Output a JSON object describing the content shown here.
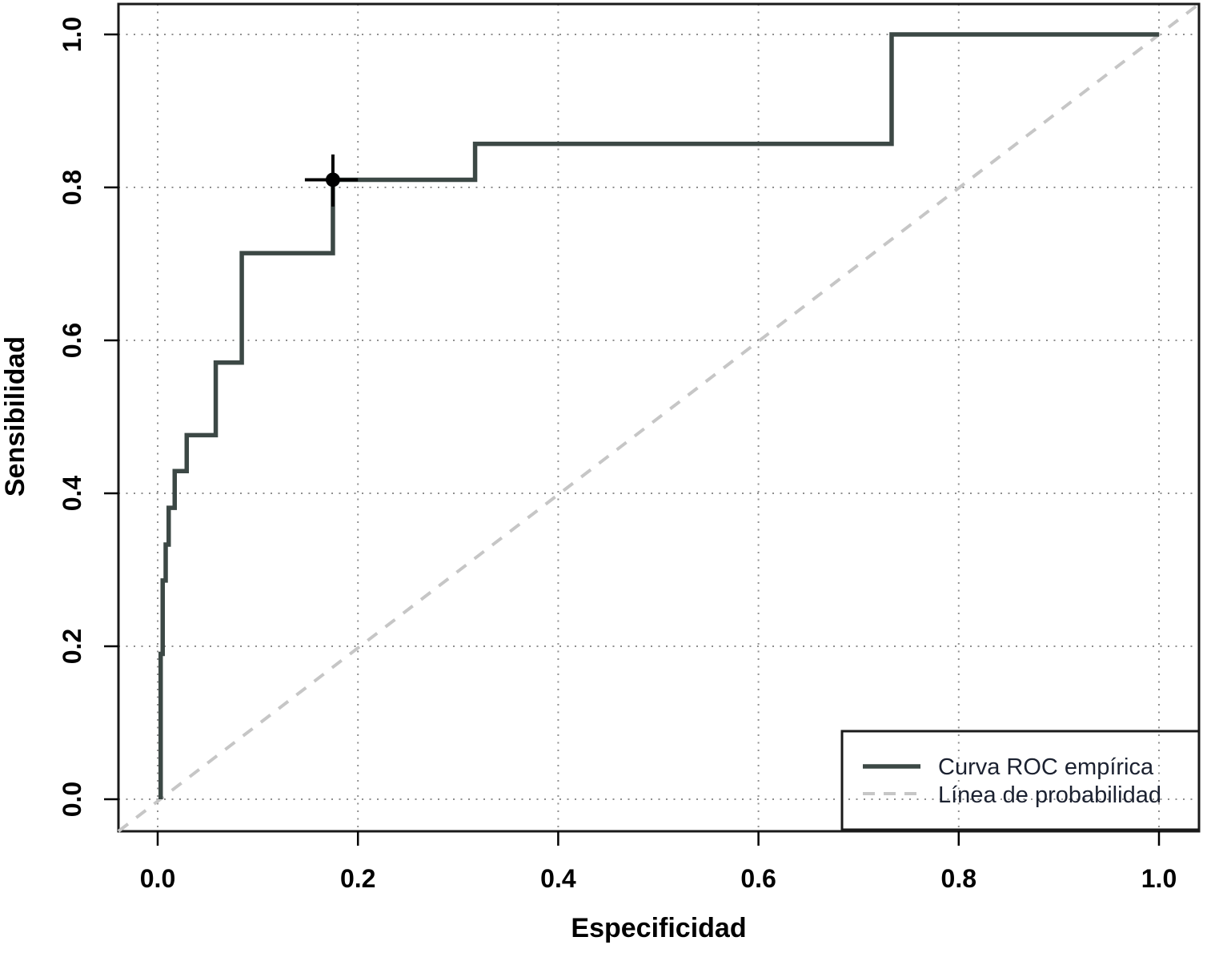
{
  "figure": {
    "background": "#ffffff",
    "box_color": "#1a1a1a",
    "grid_color": "#8f8f8f",
    "tick_color": "#000000",
    "marker_color": "#000000",
    "legend_text_color": "#1b2130"
  },
  "chart_data": {
    "type": "line",
    "subtype": "roc-step-curve",
    "title": "",
    "xlabel": "Especificidad",
    "ylabel": "Sensibilidad",
    "xlim": [
      0.0,
      1.0
    ],
    "ylim": [
      0.0,
      1.0
    ],
    "x_ticks": [
      0.0,
      0.2,
      0.4,
      0.6,
      0.8,
      1.0
    ],
    "y_ticks": [
      0.0,
      0.2,
      0.4,
      0.6,
      0.8,
      1.0
    ],
    "grid": "dotted",
    "series": [
      {
        "name": "Curva ROC empírica",
        "style": "solid",
        "color": "#3c4845",
        "width": 5.5,
        "points": [
          [
            0.003,
            0.0
          ],
          [
            0.003,
            0.19
          ],
          [
            0.005,
            0.19
          ],
          [
            0.005,
            0.286
          ],
          [
            0.008,
            0.286
          ],
          [
            0.008,
            0.333
          ],
          [
            0.011,
            0.333
          ],
          [
            0.011,
            0.381
          ],
          [
            0.017,
            0.381
          ],
          [
            0.017,
            0.429
          ],
          [
            0.029,
            0.429
          ],
          [
            0.029,
            0.476
          ],
          [
            0.058,
            0.476
          ],
          [
            0.058,
            0.571
          ],
          [
            0.084,
            0.571
          ],
          [
            0.084,
            0.714
          ],
          [
            0.175,
            0.714
          ],
          [
            0.175,
            0.81
          ],
          [
            0.317,
            0.81
          ],
          [
            0.317,
            0.857
          ],
          [
            0.733,
            0.857
          ],
          [
            0.733,
            1.0
          ],
          [
            1.0,
            1.0
          ]
        ]
      },
      {
        "name": "Línea de probabilidad",
        "style": "dashed",
        "color": "#c6c6c6",
        "width": 4,
        "points": [
          [
            0.0,
            0.0
          ],
          [
            1.0,
            1.0
          ]
        ]
      }
    ],
    "marked_point": {
      "x": 0.175,
      "y": 0.81,
      "ci_x": [
        0.147,
        0.2
      ],
      "ci_y": [
        0.775,
        0.843
      ],
      "radius": 9,
      "color": "#000000"
    },
    "legend": {
      "position": "bottom-right",
      "entries": [
        {
          "label": "Curva ROC empírica",
          "line": "solid",
          "color": "#3c4845"
        },
        {
          "label": "Línea de probabilidad",
          "line": "dashed",
          "color": "#c6c6c6"
        }
      ]
    }
  }
}
